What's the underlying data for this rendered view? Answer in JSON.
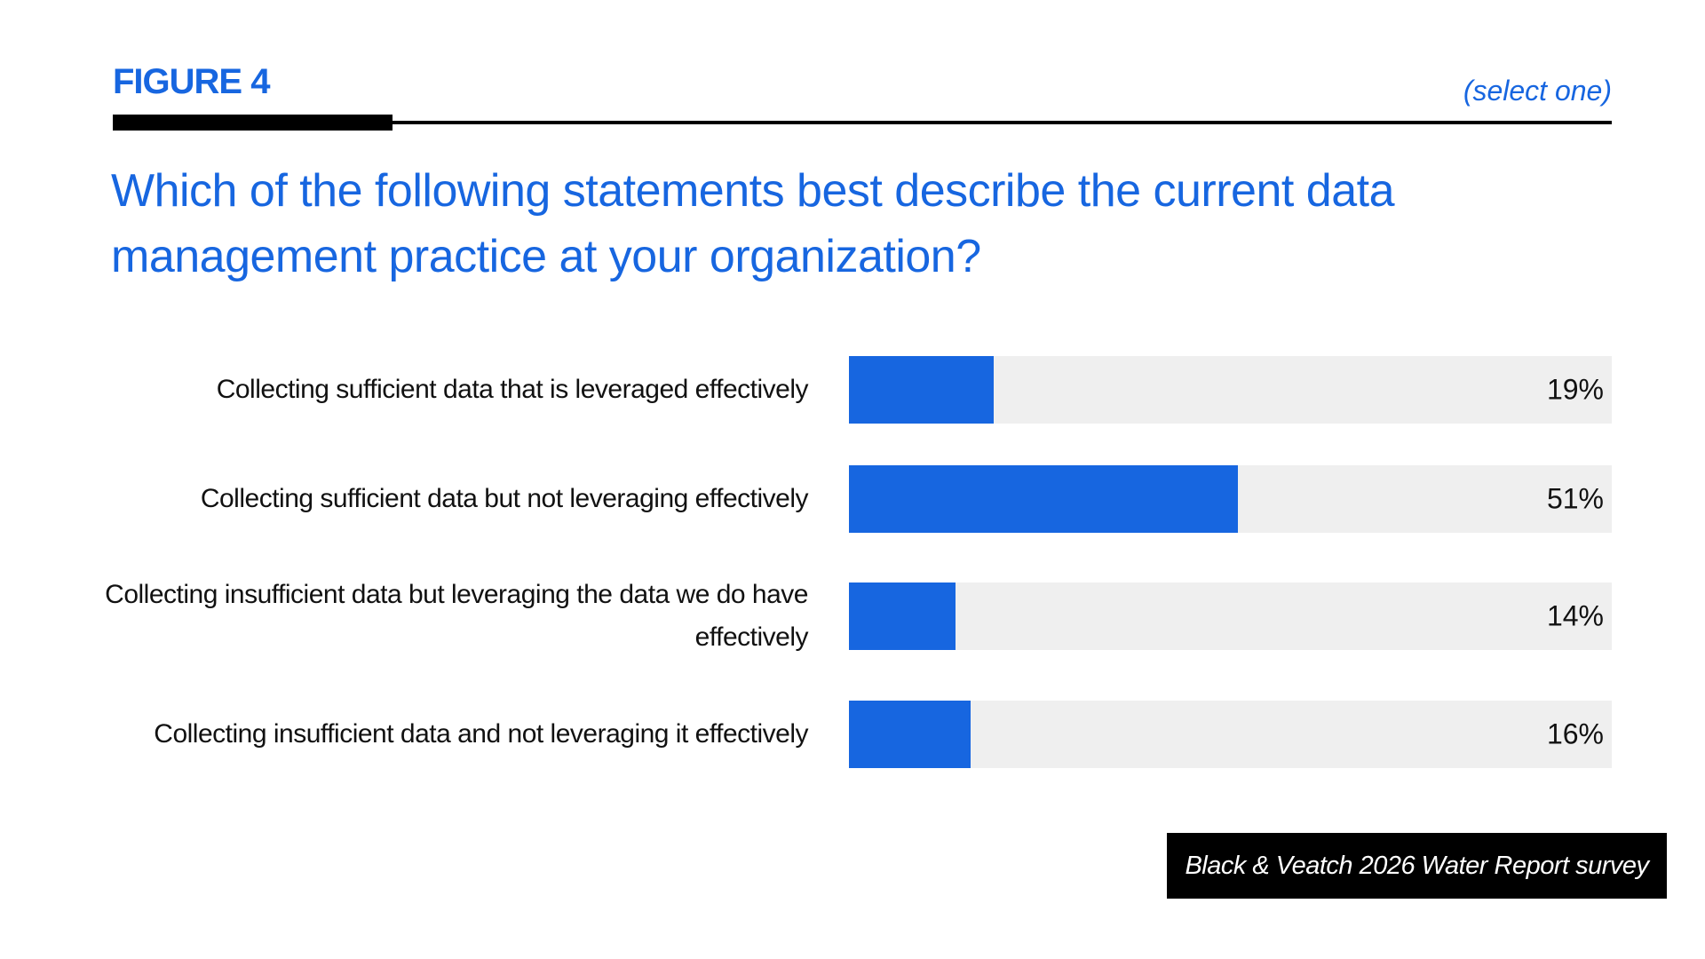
{
  "chart_data": {
    "type": "bar",
    "orientation": "horizontal",
    "figure_label": "FIGURE 4",
    "note": "(select one)",
    "title": "Which of the following statements best describe the current data management practice at your organization?",
    "categories": [
      "Collecting sufficient data that is leveraged effectively",
      "Collecting sufficient data but not leveraging effectively",
      "Collecting insufficient data but leveraging the data we do have effectively",
      "Collecting insufficient data and not leveraging it effectively"
    ],
    "values": [
      19,
      51,
      14,
      16
    ],
    "value_labels": [
      "19%",
      "51%",
      "14%",
      "16%"
    ],
    "xlim": [
      0,
      100
    ],
    "color": "#1766e0",
    "track_color": "#efefef",
    "source": "Black & Veatch 2026 Water Report survey"
  }
}
